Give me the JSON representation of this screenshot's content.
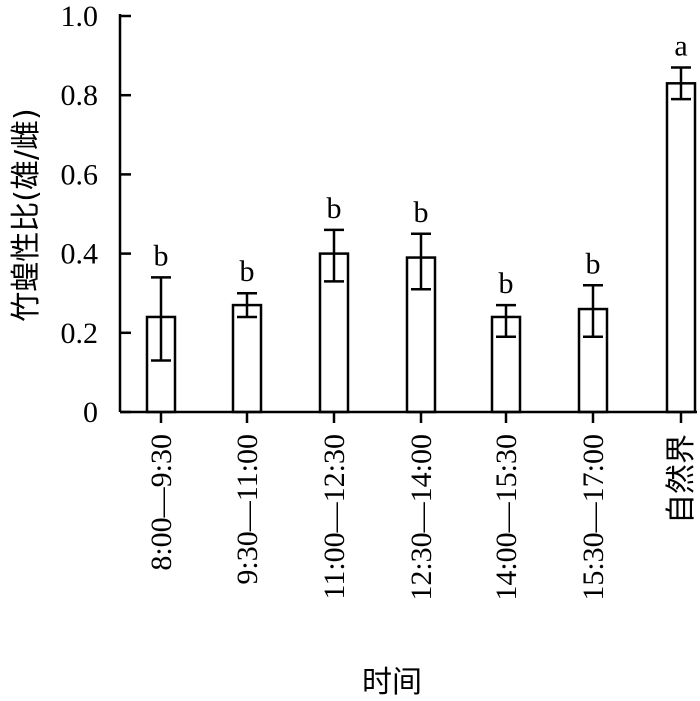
{
  "chart_data": {
    "type": "bar",
    "categories": [
      "8:00—9:30",
      "9:30—11:00",
      "11:00—12:30",
      "12:30—14:00",
      "14:00—15:30",
      "15:30—17:00",
      "自然界"
    ],
    "values": [
      0.24,
      0.27,
      0.4,
      0.39,
      0.24,
      0.26,
      0.83
    ],
    "error_high": [
      0.34,
      0.3,
      0.46,
      0.45,
      0.27,
      0.32,
      0.87
    ],
    "error_low": [
      0.13,
      0.24,
      0.33,
      0.31,
      0.19,
      0.19,
      0.79
    ],
    "significance": [
      "b",
      "b",
      "b",
      "b",
      "b",
      "b",
      "a"
    ],
    "xlabel": "时间",
    "ylabel": "竹蝗性比(雄/雌)",
    "ylim": [
      0,
      1.0
    ],
    "yticks": [
      0,
      0.2,
      0.4,
      0.6,
      0.8,
      1.0
    ],
    "ytick_labels": [
      "0",
      "0.2",
      "0.4",
      "0.6",
      "0.8",
      "1.0"
    ],
    "grid": false,
    "colors": {
      "bar_fill": "#ffffff",
      "bar_stroke": "#000000"
    }
  }
}
